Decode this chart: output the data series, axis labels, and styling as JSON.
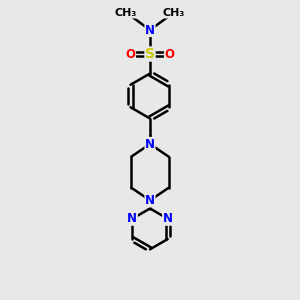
{
  "background_color": "#e8e8e8",
  "atom_color_N": "#0000ff",
  "atom_color_S": "#cccc00",
  "atom_color_O": "#ff0000",
  "bond_color": "#000000",
  "bond_width": 1.8,
  "font_size_atom": 8.5,
  "canvas_xlim": [
    0,
    10
  ],
  "canvas_ylim": [
    0,
    10
  ]
}
